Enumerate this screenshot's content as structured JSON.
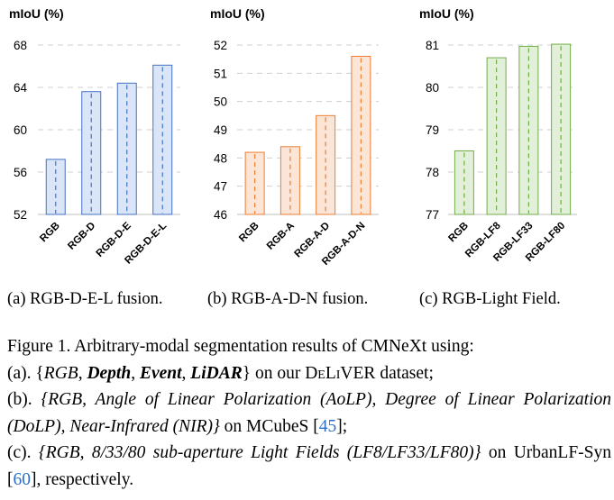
{
  "chart_data": [
    {
      "type": "bar",
      "title": "mIoU (%)",
      "categories": [
        "RGB",
        "RGB-D",
        "RGB-D-E",
        "RGB-D-E-L"
      ],
      "values": [
        57.2,
        63.6,
        64.4,
        66.1
      ],
      "yticks": [
        "52",
        "56",
        "60",
        "64",
        "68"
      ],
      "ylim": [
        52,
        68
      ],
      "grid": true,
      "colors": {
        "fill": "#dae6f8",
        "stroke": "#4472c4"
      }
    },
    {
      "type": "bar",
      "title": "mIoU (%)",
      "categories": [
        "RGB",
        "RGB-A",
        "RGB-A-D",
        "RGB-A-D-N"
      ],
      "values": [
        48.2,
        48.4,
        49.5,
        51.6
      ],
      "yticks": [
        "46",
        "47",
        "48",
        "49",
        "50",
        "51",
        "52"
      ],
      "ylim": [
        46,
        52
      ],
      "grid": true,
      "colors": {
        "fill": "#fbe5d6",
        "stroke": "#ed7d31"
      }
    },
    {
      "type": "bar",
      "title": "mIoU (%)",
      "categories": [
        "RGB",
        "RGB-LF8",
        "RGB-LF33",
        "RGB-LF80"
      ],
      "values": [
        78.5,
        80.7,
        80.97,
        81.02
      ],
      "yticks": [
        "77",
        "78",
        "79",
        "80",
        "81"
      ],
      "ylim": [
        77,
        81
      ],
      "grid": true,
      "colors": {
        "fill": "#e2f0d9",
        "stroke": "#70ad47"
      }
    }
  ],
  "subcaptions": {
    "a": "(a) RGB-D-E-L fusion.",
    "b": "(b) RGB-A-D-N fusion.",
    "c": "(c) RGB-Light Field."
  },
  "caption": {
    "intro": "Figure 1. Arbitrary-modal segmentation results of CMNeXt using:",
    "a_label": "(a).",
    "a_open": "{",
    "a_rgb": "RGB",
    "a_depth": "Depth",
    "a_event": "Event",
    "a_lidar": "LiDAR",
    "a_close": "}",
    "a_on": "on our",
    "a_dataset": "DeLiVER",
    "a_end": "dataset;",
    "b_label": "(b).",
    "b_italic": "{RGB, Angle of Linear Polarization (AoLP), Degree of Linear Polarization (DoLP), Near-Infrared (NIR)}",
    "b_on": "on MCubeS",
    "b_ref": "45",
    "b_end": ";",
    "c_label": "(c).",
    "c_italic": "{RGB, 8/33/80 sub-aperture Light Fields (LF8/LF33/LF80)}",
    "c_on": "on UrbanLF-Syn",
    "c_ref": "60",
    "c_end": ", respectively."
  }
}
